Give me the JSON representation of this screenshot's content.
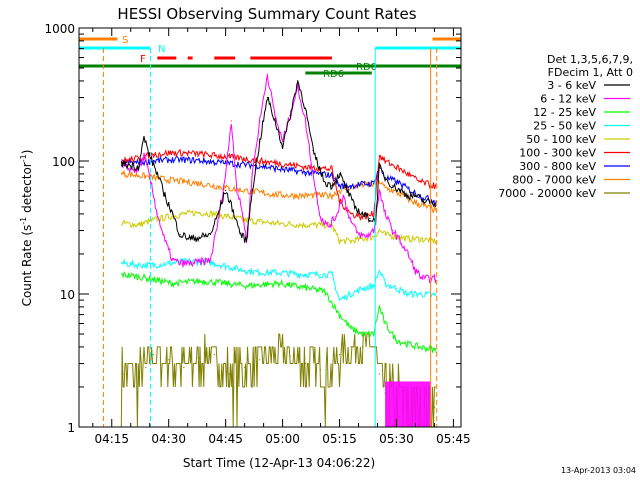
{
  "chart_data": {
    "type": "line",
    "title": "HESSI Observing Summary Count Rates",
    "xlabel": "Start Time (12-Apr-13 04:06:22)",
    "ylabel": "Count Rate (s",
    "ylabel_sup1": "-1",
    "ylabel_mid": " detector",
    "ylabel_sup2": "-1",
    "ylabel_end": ")",
    "y_scale": "log",
    "xlim_minutes": [
      246.37,
      347.0
    ],
    "ylim": [
      1,
      1000
    ],
    "x_ticks": [
      {
        "t": 255,
        "label": "04:15"
      },
      {
        "t": 270,
        "label": "04:30"
      },
      {
        "t": 285,
        "label": "04:45"
      },
      {
        "t": 300,
        "label": "05:00"
      },
      {
        "t": 315,
        "label": "05:15"
      },
      {
        "t": 330,
        "label": "05:30"
      },
      {
        "t": 345,
        "label": "05:45"
      }
    ],
    "y_ticks": [
      {
        "v": 1,
        "label": "1"
      },
      {
        "v": 10,
        "label": "10"
      },
      {
        "v": 100,
        "label": "100"
      },
      {
        "v": 1000,
        "label": "1000"
      }
    ],
    "legend_header": [
      "Det 1,3,5,6,7,9,",
      "FDecim 1, Att 0"
    ],
    "legend_position": "right",
    "series": [
      {
        "name": "3 - 6 keV",
        "color": "#000000",
        "points": [
          [
            258,
            95
          ],
          [
            262,
            90
          ],
          [
            263.5,
            150
          ],
          [
            265,
            110
          ],
          [
            267,
            80
          ],
          [
            269,
            55
          ],
          [
            271,
            40
          ],
          [
            273,
            28
          ],
          [
            276,
            26
          ],
          [
            279,
            27
          ],
          [
            281,
            28
          ],
          [
            283,
            40
          ],
          [
            285,
            60
          ],
          [
            287,
            42
          ],
          [
            289,
            28
          ],
          [
            290.5,
            25
          ],
          [
            292,
            60
          ],
          [
            294,
            140
          ],
          [
            296,
            300
          ],
          [
            298,
            200
          ],
          [
            300,
            130
          ],
          [
            302,
            220
          ],
          [
            304,
            400
          ],
          [
            306,
            250
          ],
          [
            308,
            120
          ],
          [
            311,
            70
          ],
          [
            313,
            65
          ],
          [
            315,
            80
          ],
          [
            317,
            60
          ],
          [
            319,
            45
          ],
          [
            321,
            40
          ],
          [
            323,
            37
          ],
          [
            324.5,
            35
          ],
          [
            325.5,
            90
          ],
          [
            327,
            75
          ],
          [
            329,
            65
          ],
          [
            331,
            60
          ],
          [
            333,
            55
          ],
          [
            335,
            55
          ],
          [
            337,
            50
          ],
          [
            340,
            48
          ]
        ]
      },
      {
        "name": "6 - 12 keV",
        "color": "#ff00ff",
        "points": [
          [
            258,
            90
          ],
          [
            262,
            85
          ],
          [
            263.5,
            110
          ],
          [
            265,
            75
          ],
          [
            267,
            40
          ],
          [
            269,
            25
          ],
          [
            271,
            18
          ],
          [
            273,
            17
          ],
          [
            276,
            17
          ],
          [
            279,
            17.5
          ],
          [
            281,
            18
          ],
          [
            283,
            35
          ],
          [
            285,
            80
          ],
          [
            286.5,
            200
          ],
          [
            288,
            60
          ],
          [
            289.5,
            40
          ],
          [
            290.5,
            25
          ],
          [
            292,
            80
          ],
          [
            294,
            200
          ],
          [
            296,
            450
          ],
          [
            298,
            220
          ],
          [
            300,
            140
          ],
          [
            302,
            220
          ],
          [
            304,
            360
          ],
          [
            306,
            200
          ],
          [
            308,
            80
          ],
          [
            310,
            38
          ],
          [
            312,
            32
          ],
          [
            314,
            38
          ],
          [
            316,
            55
          ],
          [
            318,
            35
          ],
          [
            320,
            28
          ],
          [
            322,
            27
          ],
          [
            324,
            30
          ],
          [
            325.5,
            60
          ],
          [
            327,
            40
          ],
          [
            329,
            30
          ],
          [
            331,
            25
          ],
          [
            333,
            20
          ],
          [
            335,
            15
          ],
          [
            337,
            13
          ],
          [
            340,
            13
          ]
        ]
      },
      {
        "name": "12 - 25 keV",
        "color": "#00ff00",
        "points": [
          [
            258,
            14
          ],
          [
            262,
            13.5
          ],
          [
            265,
            13
          ],
          [
            268,
            12.5
          ],
          [
            271,
            12
          ],
          [
            275,
            12.3
          ],
          [
            279,
            12.5
          ],
          [
            283,
            12.2
          ],
          [
            287,
            11.8
          ],
          [
            291,
            11.5
          ],
          [
            295,
            11.8
          ],
          [
            299,
            12
          ],
          [
            303,
            11.5
          ],
          [
            307,
            11
          ],
          [
            311,
            10.5
          ],
          [
            315,
            7
          ],
          [
            318,
            5.5
          ],
          [
            321,
            5
          ],
          [
            324,
            5
          ],
          [
            325.5,
            8
          ],
          [
            327,
            6
          ],
          [
            330,
            4.5
          ],
          [
            333,
            4.2
          ],
          [
            336,
            4
          ],
          [
            340,
            3.8
          ]
        ]
      },
      {
        "name": "25 - 50 keV",
        "color": "#00ffff",
        "points": [
          [
            258,
            17
          ],
          [
            262,
            16.5
          ],
          [
            266,
            16.5
          ],
          [
            270,
            17
          ],
          [
            274,
            17.5
          ],
          [
            278,
            17.5
          ],
          [
            282,
            17
          ],
          [
            286,
            16
          ],
          [
            290,
            15
          ],
          [
            294,
            14.5
          ],
          [
            298,
            14.5
          ],
          [
            302,
            14.3
          ],
          [
            306,
            14
          ],
          [
            310,
            14
          ],
          [
            313,
            14
          ],
          [
            315,
            9
          ],
          [
            318,
            10
          ],
          [
            321,
            11
          ],
          [
            324,
            11.5
          ],
          [
            325.5,
            15
          ],
          [
            327,
            12
          ],
          [
            330,
            11
          ],
          [
            333,
            10
          ],
          [
            336,
            10
          ],
          [
            340,
            9.8
          ]
        ]
      },
      {
        "name": "50 - 100 keV",
        "color": "#cccc00",
        "points": [
          [
            258,
            34
          ],
          [
            262,
            33
          ],
          [
            266,
            36
          ],
          [
            270,
            38
          ],
          [
            274,
            40
          ],
          [
            278,
            41
          ],
          [
            282,
            40
          ],
          [
            286,
            38
          ],
          [
            290,
            36
          ],
          [
            294,
            35
          ],
          [
            298,
            34
          ],
          [
            302,
            33.5
          ],
          [
            306,
            33
          ],
          [
            310,
            33
          ],
          [
            313,
            33
          ],
          [
            315,
            25
          ],
          [
            318,
            25
          ],
          [
            321,
            26
          ],
          [
            324,
            27
          ],
          [
            325.5,
            30
          ],
          [
            327,
            28
          ],
          [
            330,
            27
          ],
          [
            333,
            26
          ],
          [
            336,
            26
          ],
          [
            340,
            25
          ]
        ]
      },
      {
        "name": "100 - 300 keV",
        "color": "#ff0000",
        "points": [
          [
            258,
            100
          ],
          [
            262,
            105
          ],
          [
            266,
            112
          ],
          [
            270,
            115
          ],
          [
            274,
            115
          ],
          [
            278,
            113
          ],
          [
            282,
            110
          ],
          [
            286,
            107
          ],
          [
            290,
            104
          ],
          [
            294,
            100
          ],
          [
            298,
            97
          ],
          [
            302,
            94
          ],
          [
            306,
            90
          ],
          [
            310,
            88
          ],
          [
            313,
            87
          ],
          [
            315,
            50
          ],
          [
            318,
            40
          ],
          [
            321,
            38
          ],
          [
            324,
            40
          ],
          [
            325.5,
            110
          ],
          [
            327,
            100
          ],
          [
            330,
            90
          ],
          [
            333,
            80
          ],
          [
            336,
            70
          ],
          [
            340,
            65
          ]
        ]
      },
      {
        "name": "300 - 800 keV",
        "color": "#0000ff",
        "points": [
          [
            258,
            97
          ],
          [
            262,
            97
          ],
          [
            266,
            100
          ],
          [
            270,
            102
          ],
          [
            274,
            102
          ],
          [
            278,
            101
          ],
          [
            282,
            98
          ],
          [
            286,
            96
          ],
          [
            290,
            94
          ],
          [
            294,
            92
          ],
          [
            298,
            88
          ],
          [
            302,
            85
          ],
          [
            306,
            82
          ],
          [
            310,
            80
          ],
          [
            313,
            78
          ],
          [
            315,
            65
          ],
          [
            318,
            65
          ],
          [
            321,
            67
          ],
          [
            324,
            68
          ],
          [
            325.5,
            90
          ],
          [
            327,
            75
          ],
          [
            330,
            70
          ],
          [
            333,
            62
          ],
          [
            336,
            55
          ],
          [
            340,
            50
          ]
        ]
      },
      {
        "name": "800 - 7000 keV",
        "color": "#ff8000",
        "points": [
          [
            258,
            80
          ],
          [
            262,
            78
          ],
          [
            266,
            75
          ],
          [
            270,
            72
          ],
          [
            274,
            70
          ],
          [
            278,
            68
          ],
          [
            282,
            65
          ],
          [
            286,
            62
          ],
          [
            290,
            60
          ],
          [
            294,
            58
          ],
          [
            298,
            56
          ],
          [
            302,
            55
          ],
          [
            306,
            55
          ],
          [
            310,
            55
          ],
          [
            313,
            55
          ],
          [
            315,
            60
          ],
          [
            318,
            64
          ],
          [
            321,
            66
          ],
          [
            324,
            67
          ],
          [
            325.5,
            70
          ],
          [
            327,
            63
          ],
          [
            330,
            58
          ],
          [
            333,
            52
          ],
          [
            336,
            47
          ],
          [
            340,
            43
          ]
        ]
      },
      {
        "name": "7000 - 20000 keV",
        "color": "#808000",
        "points": [
          [
            258,
            2.5
          ],
          [
            262,
            2.4
          ],
          [
            264,
            2.8
          ],
          [
            266,
            3.5
          ],
          [
            270,
            3.2
          ],
          [
            274,
            2.8
          ],
          [
            278,
            3.3
          ],
          [
            282,
            3.5
          ],
          [
            286,
            2.5
          ],
          [
            290,
            2.8
          ],
          [
            294,
            3.2
          ],
          [
            298,
            3.6
          ],
          [
            302,
            3.4
          ],
          [
            306,
            3
          ],
          [
            310,
            2.7
          ],
          [
            313,
            2.6
          ],
          [
            315,
            3.5
          ],
          [
            318,
            4
          ],
          [
            321,
            4
          ],
          [
            324,
            4
          ],
          [
            325.5,
            2.5
          ],
          [
            327,
            1.8
          ],
          [
            330,
            1.6
          ],
          [
            333,
            1.5
          ],
          [
            336,
            1.4
          ],
          [
            340,
            1.4
          ]
        ]
      }
    ],
    "flags": [
      {
        "label": "S",
        "color": "#ff8000"
      },
      {
        "label": "N",
        "color": "#00ffff"
      },
      {
        "label": "F",
        "color": "#ff0000"
      },
      {
        "label": "RD0",
        "color": "#008000"
      },
      {
        "label": "RD6",
        "color": "#008000"
      }
    ],
    "timestamp": "13-Apr-2013 03:04"
  }
}
